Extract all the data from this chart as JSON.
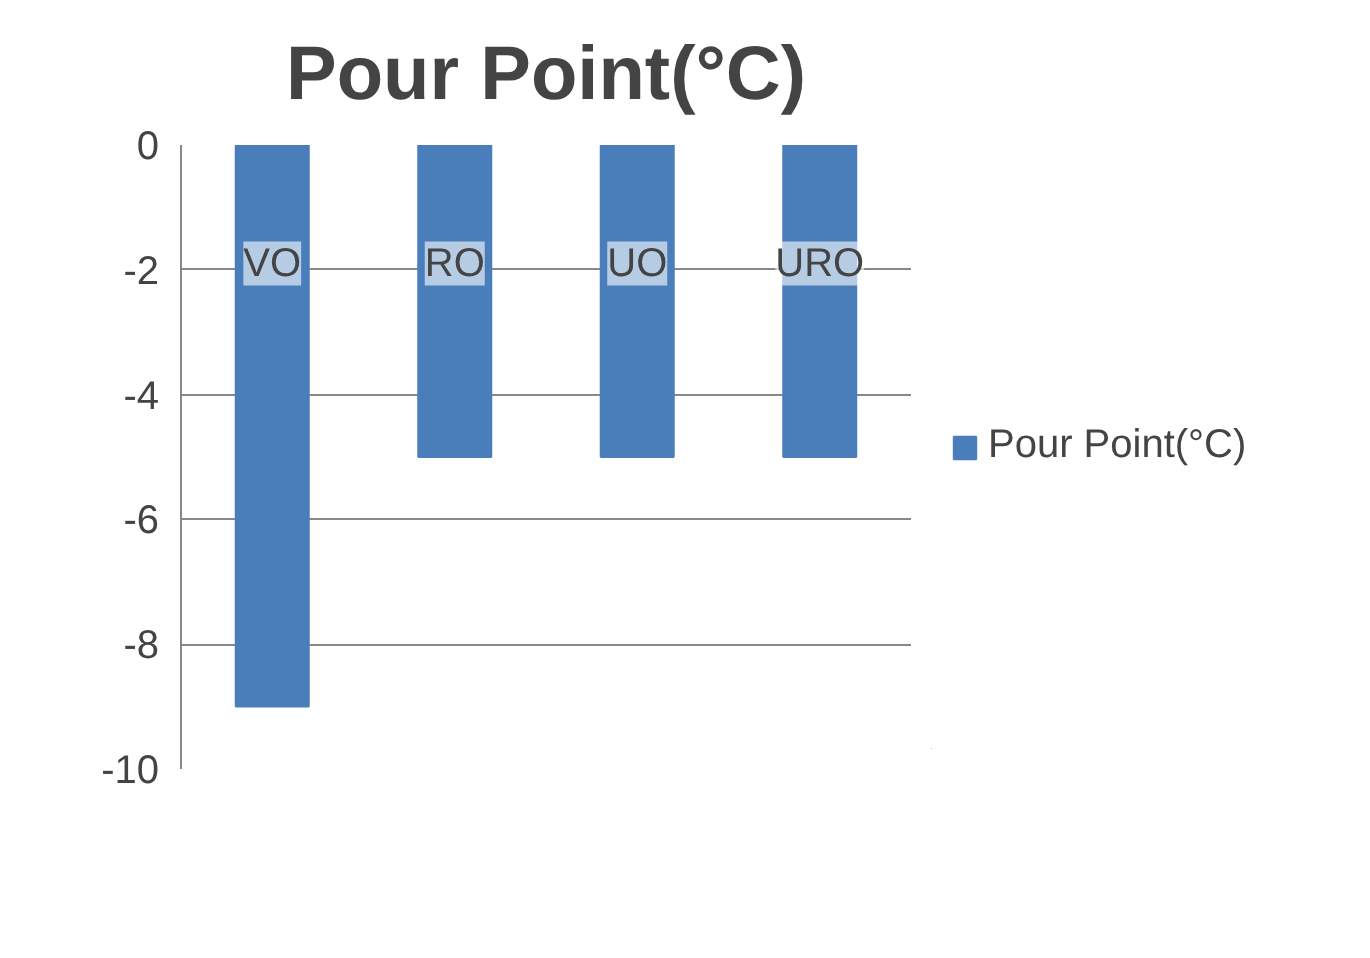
{
  "chart_data": {
    "type": "bar",
    "title": "Pour Point(°C)",
    "categories": [
      "VO",
      "RO",
      "UO",
      "URO"
    ],
    "series": [
      {
        "name": "Pour Point(°C)",
        "color": "#4a7ebb",
        "values": [
          -9,
          -5,
          -5,
          -5
        ]
      }
    ],
    "ylim": [
      -10,
      0
    ],
    "yticks": [
      -10,
      -8,
      -6,
      -4,
      -2,
      0
    ],
    "grid": "y",
    "legend": "right"
  }
}
